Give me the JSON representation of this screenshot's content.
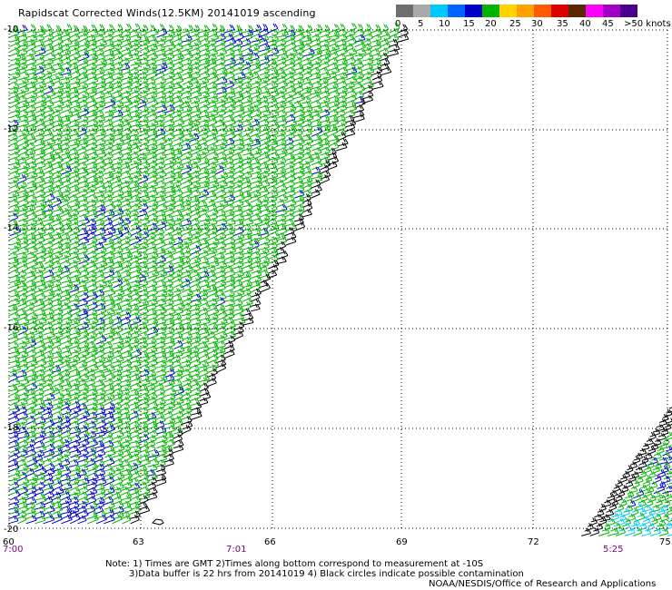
{
  "title": "Rapidscat Corrected Winds(12.5KM) 20141019 ascending",
  "legend": {
    "colors": [
      "#6e6e6e",
      "#a9a9a9",
      "#00c8ff",
      "#0064ff",
      "#0000c8",
      "#00b400",
      "#ffd200",
      "#ffa000",
      "#ff5a00",
      "#dc0000",
      "#5a2800",
      "#ff00ff",
      "#a000c8",
      "#4b008c"
    ],
    "labels": [
      "0",
      "5",
      "10",
      "15",
      "20",
      "25",
      "30",
      "35",
      "40",
      "45",
      ">50 knots"
    ]
  },
  "axes": {
    "lat_labels": [
      "-10",
      "-12",
      "-14",
      "-16",
      "-18",
      "-20"
    ],
    "lon_labels": [
      "60",
      "63",
      "66",
      "69",
      "72",
      "75"
    ],
    "time_labels": [
      "7:00",
      "7:01",
      "5:25"
    ]
  },
  "notes": {
    "line1": "Note: 1) Times are GMT 2)Times along bottom correspond to measurement at -10S",
    "line2": "3)Data buffer is 22 hrs from 20141019 4) Black circles indicate possible contamination",
    "credit": "NOAA/NESDIS/Office of Research and Applications"
  },
  "colors": {
    "barb_main": "#00b400",
    "barb_strong": "#0000c8",
    "barb_edge": "#000000",
    "barb_light": "#00c8ff",
    "time": "#7a007a"
  }
}
